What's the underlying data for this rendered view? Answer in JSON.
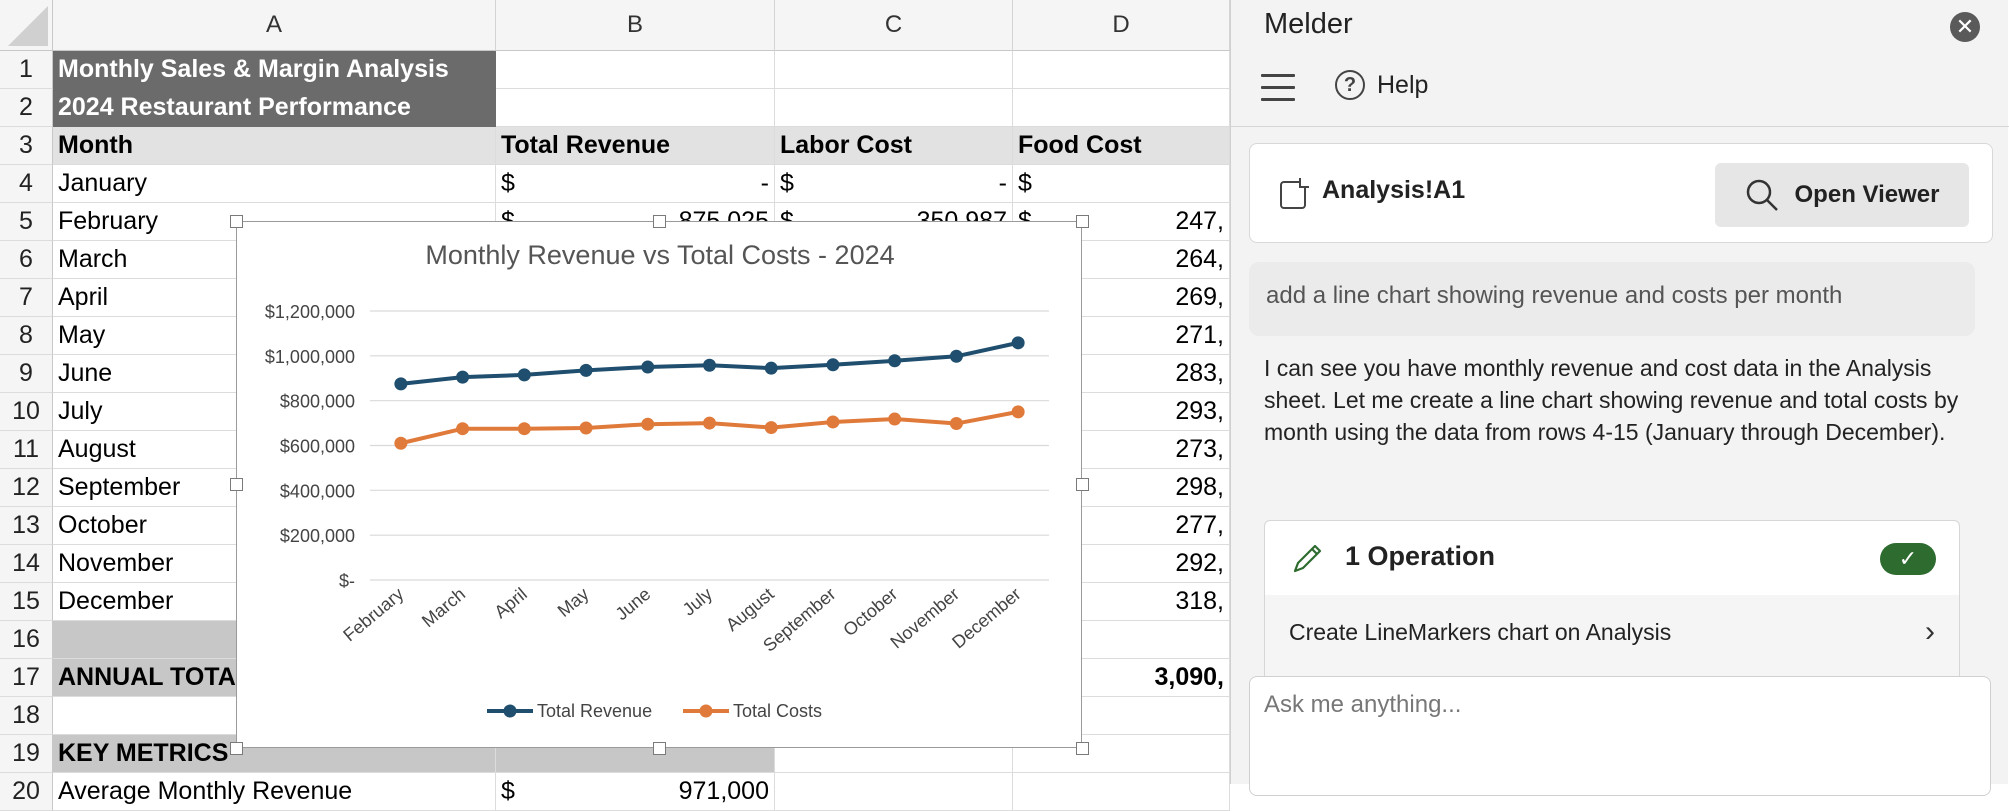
{
  "sheet": {
    "columns": [
      "A",
      "B",
      "C",
      "D"
    ],
    "rows": [
      {
        "num": "1",
        "a": "Monthly Sales & Margin Analysis",
        "style": "title"
      },
      {
        "num": "2",
        "a": "2024 Restaurant Performance",
        "style": "title"
      },
      {
        "num": "3",
        "a": "Month",
        "b": "Total Revenue",
        "c": "Labor Cost",
        "d": "Food Cost",
        "style": "header"
      },
      {
        "num": "4",
        "a": "January",
        "b_sym": "$",
        "b_val": "-",
        "c_sym": "$",
        "c_val": "-",
        "d_sym": "$",
        "d_val": ""
      },
      {
        "num": "5",
        "a": "February",
        "b_sym": "$",
        "b_val": "875,025",
        "c_sym": "$",
        "c_val": "350,987",
        "d_sym": "$",
        "d_val": "247,"
      },
      {
        "num": "6",
        "a": "March",
        "d_val": "264,"
      },
      {
        "num": "7",
        "a": "April",
        "d_val": "269,"
      },
      {
        "num": "8",
        "a": "May",
        "d_val": "271,"
      },
      {
        "num": "9",
        "a": "June",
        "d_val": "283,"
      },
      {
        "num": "10",
        "a": "July",
        "d_val": "293,"
      },
      {
        "num": "11",
        "a": "August",
        "d_val": "273,"
      },
      {
        "num": "12",
        "a": "September",
        "d_val": "298,"
      },
      {
        "num": "13",
        "a": "October",
        "d_val": "277,"
      },
      {
        "num": "14",
        "a": "November",
        "d_val": "292,"
      },
      {
        "num": "15",
        "a": "December",
        "d_val": "318,"
      },
      {
        "num": "16",
        "a": "",
        "style": "gray"
      },
      {
        "num": "17",
        "a": "ANNUAL TOTAL",
        "d_val": "3,090,",
        "style": "total"
      },
      {
        "num": "18",
        "a": ""
      },
      {
        "num": "19",
        "a": "KEY METRICS",
        "style": "metrics"
      },
      {
        "num": "20",
        "a": "Average Monthly Revenue",
        "b_sym": "$",
        "b_val": "971,000"
      }
    ]
  },
  "chart_data": {
    "type": "line",
    "title": "Monthly Revenue vs Total Costs - 2024",
    "categories": [
      "February",
      "March",
      "April",
      "May",
      "June",
      "July",
      "August",
      "September",
      "October",
      "November",
      "December"
    ],
    "series": [
      {
        "name": "Total Revenue",
        "color": "#1f4e6e",
        "values": [
          875000,
          905000,
          915000,
          935000,
          950000,
          958000,
          945000,
          960000,
          978000,
          998000,
          1058000
        ]
      },
      {
        "name": "Total Costs",
        "color": "#e07a3a",
        "values": [
          610000,
          675000,
          675000,
          678000,
          695000,
          700000,
          680000,
          705000,
          718000,
          698000,
          750000
        ]
      }
    ],
    "ylim": [
      0,
      1200000
    ],
    "yticks": [
      "$-",
      "$200,000",
      "$400,000",
      "$600,000",
      "$800,000",
      "$1,000,000",
      "$1,200,000"
    ],
    "grid": true,
    "legend": "bottom"
  },
  "pane": {
    "title": "Melder",
    "help_label": "Help",
    "ref_label": "Analysis!A1",
    "viewer_label": "Open Viewer",
    "user_prompt": "add a line chart showing revenue and costs per month",
    "response": "I can see you have monthly revenue and cost data in the Analysis sheet. Let me create a line chart showing revenue and total costs by month using the data from rows 4-15 (January through December).",
    "op_title": "1 Operation",
    "op_item": "Create LineMarkers chart on Analysis",
    "ask_placeholder": "Ask me anything..."
  }
}
